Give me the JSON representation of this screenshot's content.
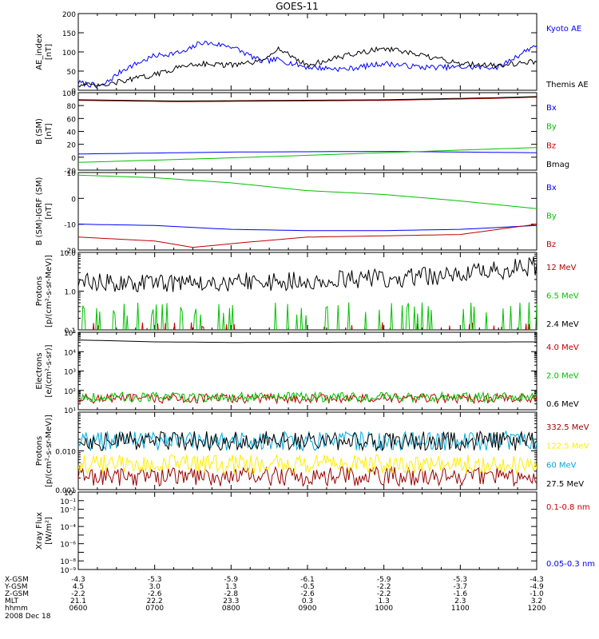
{
  "title": "GOES-11",
  "chart_data": [
    {
      "type": "line",
      "id": "ae",
      "ylabel": [
        "AE_index",
        "[nT]"
      ],
      "yscale": "linear",
      "ylim": [
        0,
        200
      ],
      "yticks": [
        0,
        50,
        100,
        150,
        200
      ],
      "yticklabels": [
        "0",
        "50",
        "100",
        "150",
        "200"
      ],
      "series": [
        {
          "name": "Kyoto AE",
          "color": "#0000ff",
          "style": "noisy",
          "x": [
            0,
            0.3,
            0.6,
            1,
            1.4,
            1.6,
            2,
            2.4,
            2.6,
            3,
            3.5,
            4,
            4.5,
            5,
            5.5,
            6
          ],
          "values": [
            20,
            10,
            55,
            90,
            100,
            125,
            115,
            75,
            80,
            60,
            55,
            70,
            60,
            60,
            60,
            120
          ]
        },
        {
          "name": "Themis AE",
          "color": "#000000",
          "style": "noisy",
          "x": [
            0,
            0.3,
            0.6,
            1,
            1.4,
            1.6,
            2,
            2.4,
            2.6,
            3,
            3.5,
            4,
            4.5,
            5,
            5.5,
            6
          ],
          "values": [
            15,
            10,
            25,
            40,
            65,
            70,
            65,
            75,
            110,
            65,
            90,
            110,
            90,
            70,
            65,
            75
          ]
        }
      ]
    },
    {
      "type": "line",
      "id": "bsm",
      "ylabel": [
        "B (SM)",
        "[nT]"
      ],
      "yscale": "linear",
      "ylim": [
        -20,
        100
      ],
      "yticks": [
        -20,
        0,
        20,
        40,
        60,
        80,
        100
      ],
      "yticklabels": [
        "-20",
        "0",
        "20",
        "40",
        "60",
        "80",
        "100"
      ],
      "series": [
        {
          "name": "Bx",
          "color": "#0000ff",
          "style": "smooth",
          "x": [
            0,
            2,
            4,
            6
          ],
          "values": [
            5,
            8,
            9,
            7
          ]
        },
        {
          "name": "By",
          "color": "#00c000",
          "style": "smooth",
          "x": [
            0,
            2,
            4,
            6
          ],
          "values": [
            -8,
            -1,
            7,
            15
          ]
        },
        {
          "name": "Bz",
          "color": "#c00000",
          "style": "smooth",
          "x": [
            0,
            1.3,
            4,
            5.4,
            6
          ],
          "values": [
            88,
            86,
            88,
            91,
            93
          ]
        },
        {
          "name": "Bmag",
          "color": "#000000",
          "style": "smooth",
          "x": [
            0,
            1.3,
            4,
            5.4,
            6
          ],
          "values": [
            89,
            87,
            89,
            92,
            94
          ]
        }
      ]
    },
    {
      "type": "line",
      "id": "bdiff",
      "ylabel": [
        "B (SM)-IGRF (SM)",
        "[nT]"
      ],
      "yscale": "linear",
      "ylim": [
        -20,
        10
      ],
      "yticks": [
        -20,
        -10,
        0,
        10
      ],
      "yticklabels": [
        "-20",
        "-10",
        "0",
        "10"
      ],
      "series": [
        {
          "name": "Bx",
          "color": "#0000ff",
          "style": "smooth",
          "x": [
            0,
            1,
            2,
            3,
            4,
            5,
            6
          ],
          "values": [
            -10,
            -10.5,
            -12,
            -12.5,
            -12.5,
            -12,
            -10.5
          ]
        },
        {
          "name": "By",
          "color": "#00c000",
          "style": "smooth",
          "x": [
            0,
            1,
            2,
            3,
            4,
            5,
            6
          ],
          "values": [
            9,
            8,
            6,
            3,
            1.5,
            -1,
            -4
          ]
        },
        {
          "name": "Bz",
          "color": "#c00000",
          "style": "smooth",
          "x": [
            0,
            1,
            1.5,
            2.2,
            3,
            4,
            5,
            6
          ],
          "values": [
            -15,
            -16.5,
            -19,
            -17,
            -15,
            -14.5,
            -14,
            -10
          ]
        }
      ]
    },
    {
      "type": "line",
      "id": "protons1",
      "ylabel": [
        "Protons",
        "[p/(cm²-s-sr-MeV)]"
      ],
      "yscale": "log",
      "ylim": [
        0.1,
        10
      ],
      "yticks": [
        0.1,
        1,
        10
      ],
      "yticklabels": [
        "0.1",
        "1.0",
        "10.0"
      ],
      "series": [
        {
          "name": "12 MeV",
          "color": "#c00000",
          "style": "sparse",
          "x": [
            0,
            6
          ],
          "values": [
            0.1,
            0.1
          ]
        },
        {
          "name": "6.5 MeV",
          "color": "#00c000",
          "style": "spiky",
          "x": [
            0,
            6
          ],
          "values": [
            0.15,
            0.15
          ]
        },
        {
          "name": "2.4 MeV",
          "color": "#000000",
          "style": "noisy",
          "x": [
            0,
            3,
            5,
            6
          ],
          "values": [
            1.6,
            1.8,
            2.5,
            4.5
          ]
        }
      ]
    },
    {
      "type": "line",
      "id": "electrons",
      "ylabel": [
        "Electrons",
        "[e/(cm²-s-sr)]"
      ],
      "yscale": "log",
      "ylim": [
        10,
        100000
      ],
      "yticks": [
        10,
        100,
        1000,
        10000,
        100000
      ],
      "yticklabels": [
        "10¹",
        "10²",
        "10³",
        "10⁴",
        "10⁵"
      ],
      "series": [
        {
          "name": "4.0 MeV",
          "color": "#c00000",
          "style": "noisy",
          "x": [
            0,
            6
          ],
          "values": [
            38,
            38
          ]
        },
        {
          "name": "2.0 MeV",
          "color": "#00c000",
          "style": "noisy",
          "x": [
            0,
            6
          ],
          "values": [
            45,
            45
          ]
        },
        {
          "name": "0.6 MeV",
          "color": "#000000",
          "style": "smooth",
          "x": [
            0,
            1,
            2,
            6
          ],
          "values": [
            40000,
            32000,
            30000,
            32000
          ]
        }
      ]
    },
    {
      "type": "line",
      "id": "protons2",
      "ylabel": [
        "Protons",
        "[p/(cm²-s-sr-MeV)]"
      ],
      "yscale": "log",
      "ylim": [
        0.001,
        0.1
      ],
      "yticks": [
        0.001,
        0.01
      ],
      "yticklabels": [
        "0.001",
        "0.010"
      ],
      "series": [
        {
          "name": "332.5 MeV",
          "color": "#990000",
          "style": "noisy",
          "x": [
            0,
            6
          ],
          "values": [
            0.0022,
            0.0022
          ]
        },
        {
          "name": "122.5 MeV",
          "color": "#ffee00",
          "style": "noisy",
          "x": [
            0,
            6
          ],
          "values": [
            0.0045,
            0.0045
          ]
        },
        {
          "name": "60 MeV",
          "color": "#00aadd",
          "style": "noisy",
          "x": [
            0,
            6
          ],
          "values": [
            0.018,
            0.018
          ]
        },
        {
          "name": "27.5 MeV",
          "color": "#000000",
          "style": "noisy",
          "x": [
            0,
            6
          ],
          "values": [
            0.018,
            0.018
          ]
        }
      ]
    },
    {
      "type": "line",
      "id": "xray",
      "ylabel": [
        "Xray Flux",
        "[W/m²]"
      ],
      "yscale": "log",
      "ylim": [
        1e-09,
        1
      ],
      "yticks": [
        1e-09,
        1e-08,
        1e-07,
        1e-06,
        1e-05,
        0.0001,
        0.001,
        0.01,
        0.1,
        1
      ],
      "yticklabels": [
        "10⁻⁹",
        "10⁻⁸",
        "",
        "10⁻⁶",
        "",
        "10⁻⁴",
        "",
        "10⁻²",
        "10⁻¹",
        "10⁰"
      ],
      "series": [
        {
          "name": "0.1-0.8 nm",
          "color": "#c00000",
          "values": []
        },
        {
          "name": "0.05-0.3 nm",
          "color": "#0000ff",
          "values": []
        }
      ]
    }
  ],
  "x_axis": {
    "row_labels": [
      "X-GSM",
      "Y-GSM",
      "Z-GSM",
      "MLT",
      "hhmm"
    ],
    "columns": [
      [
        "-4.3",
        "4.5",
        "-2.2",
        "21.1",
        "0600"
      ],
      [
        "-5.3",
        "3.0",
        "-2.6",
        "22.2",
        "0700"
      ],
      [
        "-5.9",
        "1.3",
        "-2.8",
        "23.3",
        "0800"
      ],
      [
        "-6.1",
        "-0.5",
        "-2.6",
        "0.3",
        "0900"
      ],
      [
        "-5.9",
        "-2.2",
        "-2.2",
        "1.3",
        "1000"
      ],
      [
        "-5.3",
        "-3.7",
        "-1.6",
        "2.3",
        "1100"
      ],
      [
        "-4.3",
        "-4.9",
        "-1.0",
        "3.2",
        "1200"
      ]
    ],
    "date": "2008 Dec 18"
  }
}
